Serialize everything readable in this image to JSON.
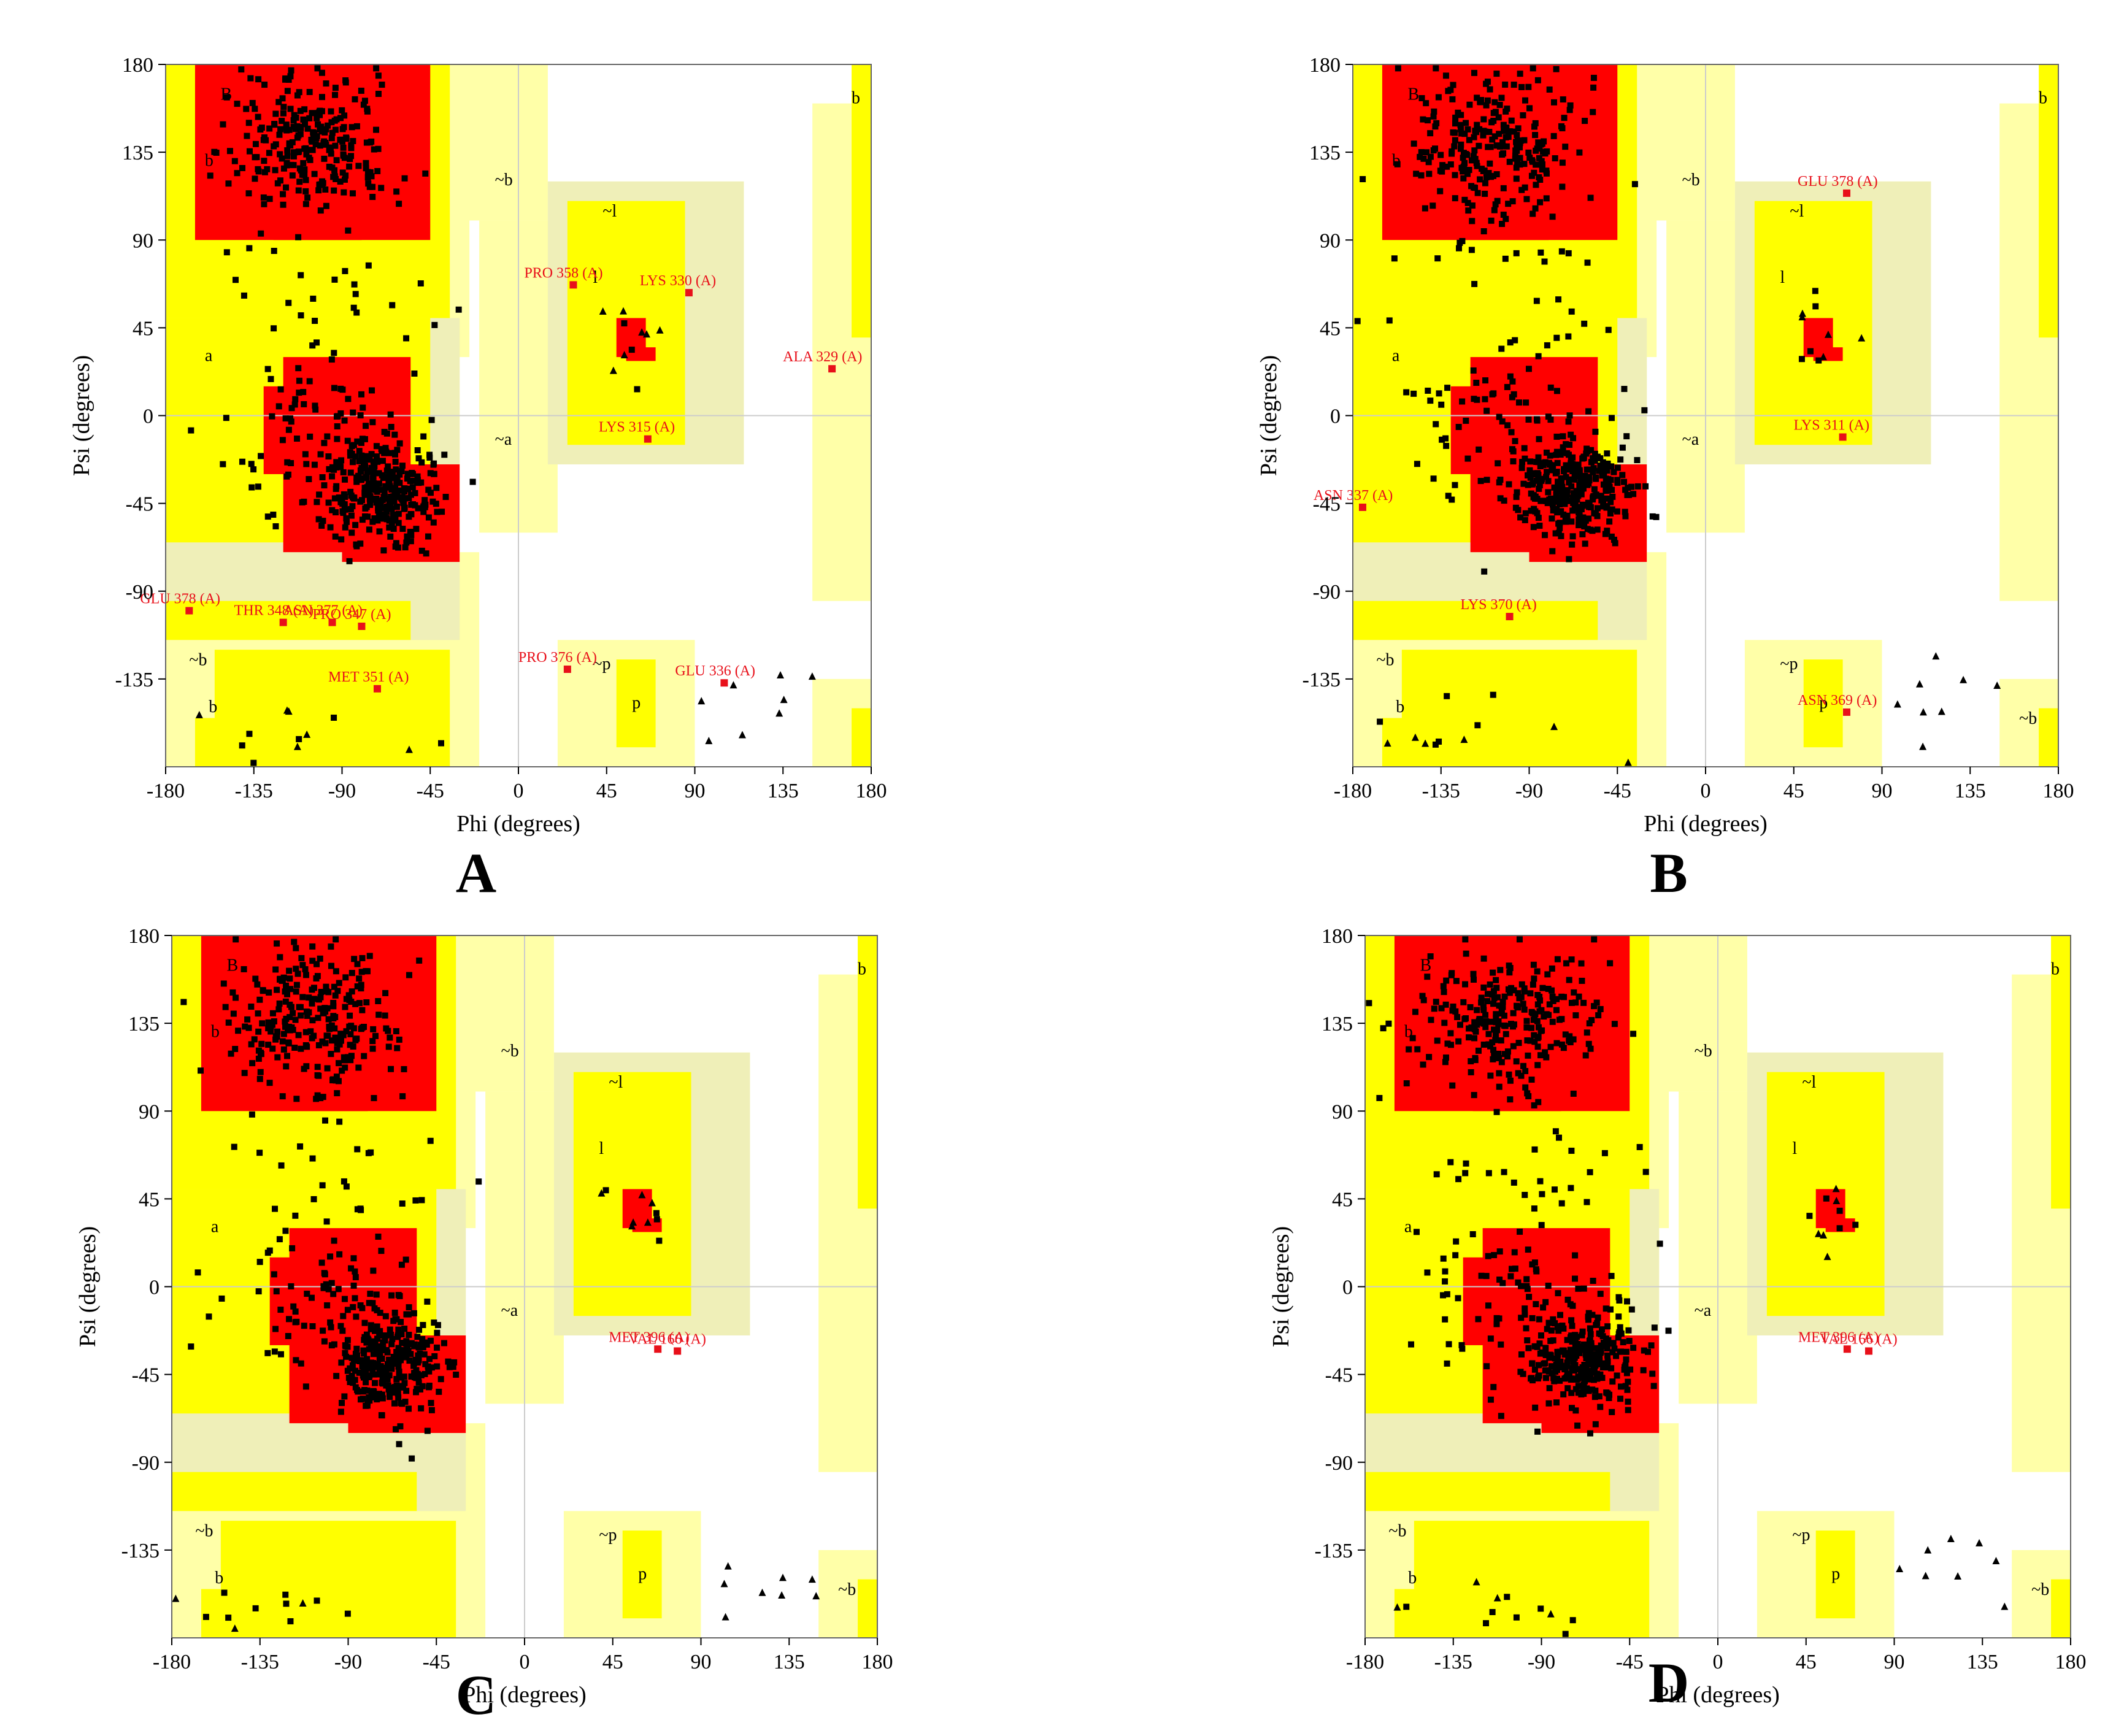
{
  "figure": {
    "panel_labels": [
      "A",
      "B",
      "C",
      "D"
    ]
  },
  "colors": {
    "core": "#ff0000",
    "allowed": "#ffff00",
    "generous": "#ffffa8",
    "generous_alt": "#efefb8",
    "point": "#000000",
    "outlier": "#e8101a",
    "frame": "#666666"
  },
  "chart_data": [
    {
      "type": "scatter",
      "panel": "A",
      "xlabel": "Phi (degrees)",
      "ylabel": "Psi (degrees)",
      "xlim": [
        -180,
        180
      ],
      "ylim": [
        -180,
        180
      ],
      "xticks": [
        "-180",
        "-135",
        "-90",
        "-45",
        "0",
        "45",
        "90",
        "135",
        "180"
      ],
      "yticks": [
        "180",
        "135",
        "90",
        "45",
        "0",
        "-45",
        "-90",
        "-135"
      ],
      "region_letters": [
        "B",
        "b",
        "a",
        "~l",
        "l",
        "~a",
        "~b",
        "b",
        "~b",
        "~p",
        "p",
        "b"
      ],
      "outliers": [
        {
          "label": "PRO 358 (A)",
          "phi": 28,
          "psi": 67
        },
        {
          "label": "LYS 330 (A)",
          "phi": 87,
          "psi": 63
        },
        {
          "label": "ALA 329 (A)",
          "phi": 160,
          "psi": 24
        },
        {
          "label": "LYS 315 (A)",
          "phi": 66,
          "psi": -12
        },
        {
          "label": "GLU 378 (A)",
          "phi": -168,
          "psi": -100
        },
        {
          "label": "THR 348 (A)",
          "phi": -120,
          "psi": -106
        },
        {
          "label": "ASN 377 (A)",
          "phi": -95,
          "psi": -106
        },
        {
          "label": "PRO 347 (A)",
          "phi": -80,
          "psi": -108
        },
        {
          "label": "PRO 376 (A)",
          "phi": 25,
          "psi": -130
        },
        {
          "label": "GLU 336 (A)",
          "phi": 105,
          "psi": -137
        },
        {
          "label": "MET 351 (A)",
          "phi": -72,
          "psi": -140
        }
      ]
    },
    {
      "type": "scatter",
      "panel": "B",
      "xlabel": "Phi (degrees)",
      "ylabel": "Psi (degrees)",
      "xlim": [
        -180,
        180
      ],
      "ylim": [
        -180,
        180
      ],
      "xticks": [
        "-180",
        "-135",
        "-90",
        "-45",
        "0",
        "45",
        "90",
        "135",
        "180"
      ],
      "yticks": [
        "180",
        "135",
        "90",
        "45",
        "0",
        "-45",
        "-90",
        "-135"
      ],
      "region_letters": [
        "B",
        "b",
        "a",
        "~l",
        "l",
        "~a",
        "~b",
        "b",
        "~b",
        "~p",
        "p",
        "b",
        "~b"
      ],
      "outliers": [
        {
          "label": "GLU 378 (A)",
          "phi": 72,
          "psi": 114
        },
        {
          "label": "LYS 311 (A)",
          "phi": 70,
          "psi": -11
        },
        {
          "label": "ASN 337 (A)",
          "phi": -175,
          "psi": -47
        },
        {
          "label": "LYS 370 (A)",
          "phi": -100,
          "psi": -103
        },
        {
          "label": "ASN 369 (A)",
          "phi": 72,
          "psi": -152
        }
      ]
    },
    {
      "type": "scatter",
      "panel": "C",
      "xlabel": "Phi (degrees)",
      "ylabel": "Psi (degrees)",
      "xlim": [
        -180,
        180
      ],
      "ylim": [
        -180,
        180
      ],
      "xticks": [
        "-180",
        "-135",
        "-90",
        "-45",
        "0",
        "45",
        "90",
        "135",
        "180"
      ],
      "yticks": [
        "180",
        "135",
        "90",
        "45",
        "0",
        "-45",
        "-90",
        "-135"
      ],
      "region_letters": [
        "B",
        "b",
        "a",
        "~l",
        "l",
        "~a",
        "~b",
        "b",
        "~b",
        "~p",
        "p",
        "b",
        "~b"
      ],
      "outliers": [
        {
          "label": "MET 396 (A)",
          "phi": 68,
          "psi": -32
        },
        {
          "label": "VAL 166 (A)",
          "phi": 78,
          "psi": -33
        }
      ]
    },
    {
      "type": "scatter",
      "panel": "D",
      "xlabel": "Phi (degrees)",
      "ylabel": "Psi (degrees)",
      "xlim": [
        -180,
        180
      ],
      "ylim": [
        -180,
        180
      ],
      "xticks": [
        "-180",
        "-135",
        "-90",
        "-45",
        "0",
        "45",
        "90",
        "135",
        "180"
      ],
      "yticks": [
        "180",
        "135",
        "90",
        "45",
        "0",
        "-45",
        "-90",
        "-135"
      ],
      "region_letters": [
        "B",
        "b",
        "a",
        "~l",
        "l",
        "~a",
        "~b",
        "b",
        "~b",
        "~p",
        "p",
        "b",
        "~b"
      ],
      "outliers": [
        {
          "label": "MET 396 (A)",
          "phi": 66,
          "psi": -32
        },
        {
          "label": "VAL 166 (A)",
          "phi": 77,
          "psi": -33
        }
      ]
    }
  ]
}
